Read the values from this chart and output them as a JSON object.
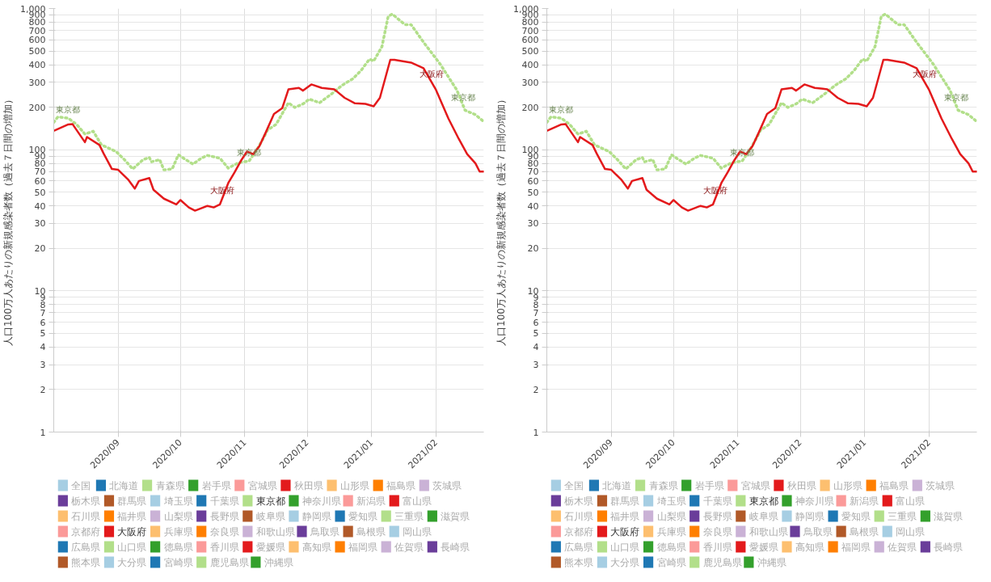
{
  "chart_data": [
    {
      "type": "line",
      "ylabel": "人口100万人あたりの新規感染者数（過去７日間の増加）",
      "log": true,
      "grid": true,
      "legend": "bottom",
      "xlim": [
        "2020-08-01",
        "2021-02-24"
      ],
      "xticks": [
        {
          "value": "2020-09-01",
          "label": "2020/09"
        },
        {
          "value": "2020-10-01",
          "label": "2020/10"
        },
        {
          "value": "2020-11-01",
          "label": "2020/11"
        },
        {
          "value": "2020-12-01",
          "label": "2020/12"
        },
        {
          "value": "2021-01-01",
          "label": "2021/01"
        },
        {
          "value": "2021-02-01",
          "label": "2021/02"
        }
      ],
      "ylim": [
        1,
        1000
      ],
      "yticks": [
        1,
        2,
        3,
        4,
        5,
        6,
        7,
        8,
        9,
        10,
        20,
        30,
        40,
        50,
        60,
        70,
        80,
        90,
        100,
        200,
        300,
        400,
        500,
        600,
        700,
        800,
        900,
        {
          "value": 1000,
          "label": "1,000"
        }
      ],
      "annotations": [
        {
          "text": "東京都",
          "x": "2020-08-08",
          "y": 167
        },
        {
          "text": "東京都",
          "x": "2020-11-03",
          "y": 83
        },
        {
          "text": "大阪府",
          "x": "2020-10-21",
          "y": 45
        },
        {
          "text": "大阪府",
          "x": "2021-01-30",
          "y": 300
        },
        {
          "text": "東京都",
          "x": "2021-02-14",
          "y": 205
        }
      ],
      "series": [
        {
          "name": "全国",
          "color": "#a6cee3"
        },
        {
          "name": "北海道",
          "color": "#1f78b4"
        },
        {
          "name": "青森県",
          "color": "#b2df8a"
        },
        {
          "name": "岩手県",
          "color": "#33a02c"
        },
        {
          "name": "宮城県",
          "color": "#fb9a99"
        },
        {
          "name": "秋田県",
          "color": "#e31a1c"
        },
        {
          "name": "山形県",
          "color": "#fdbf6f"
        },
        {
          "name": "福島県",
          "color": "#ff7f00"
        },
        {
          "name": "茨城県",
          "color": "#cab2d6"
        },
        {
          "name": "栃木県",
          "color": "#6a3d9a"
        },
        {
          "name": "群馬県",
          "color": "#b15928"
        },
        {
          "name": "埼玉県",
          "color": "#a6cee3"
        },
        {
          "name": "千葉県",
          "color": "#1f78b4"
        },
        {
          "name": "東京都",
          "color": "#b2df8a",
          "line_style": "dotted",
          "x": [
            "2020-08-01",
            "2020-08-03",
            "2020-08-08",
            "2020-08-12",
            "2020-08-16",
            "2020-08-20",
            "2020-08-24",
            "2020-08-31",
            "2020-09-04",
            "2020-09-08",
            "2020-09-13",
            "2020-09-16",
            "2020-09-17",
            "2020-09-21",
            "2020-09-23",
            "2020-09-27",
            "2020-09-30",
            "2020-10-03",
            "2020-10-07",
            "2020-10-11",
            "2020-10-14",
            "2020-10-20",
            "2020-10-24",
            "2020-10-29",
            "2020-11-03",
            "2020-11-07",
            "2020-11-12",
            "2020-11-16",
            "2020-11-22",
            "2020-11-25",
            "2020-11-29",
            "2020-12-02",
            "2020-12-07",
            "2020-12-13",
            "2020-12-18",
            "2020-12-23",
            "2020-12-27",
            "2020-12-31",
            "2021-01-02",
            "2021-01-06",
            "2021-01-09",
            "2021-01-11",
            "2021-01-17",
            "2021-01-20",
            "2021-01-26",
            "2021-02-03",
            "2021-02-11",
            "2021-02-15",
            "2021-02-20",
            "2021-02-24"
          ],
          "values": [
            156,
            171,
            167,
            151,
            129,
            135,
            108,
            97,
            85,
            73,
            85,
            88,
            82,
            85,
            72,
            73,
            92,
            86,
            79,
            87,
            91,
            87,
            74,
            81,
            83,
            101,
            138,
            151,
            215,
            199,
            211,
            228,
            215,
            250,
            287,
            318,
            365,
            438,
            424,
            538,
            881,
            912,
            769,
            769,
            577,
            404,
            265,
            190,
            177,
            158
          ]
        },
        {
          "name": "神奈川県",
          "color": "#33a02c"
        },
        {
          "name": "新潟県",
          "color": "#fb9a99"
        },
        {
          "name": "富山県",
          "color": "#e31a1c"
        },
        {
          "name": "石川県",
          "color": "#fdbf6f"
        },
        {
          "name": "福井県",
          "color": "#ff7f00"
        },
        {
          "name": "山梨県",
          "color": "#cab2d6"
        },
        {
          "name": "長野県",
          "color": "#6a3d9a"
        },
        {
          "name": "岐阜県",
          "color": "#b15928"
        },
        {
          "name": "静岡県",
          "color": "#a6cee3"
        },
        {
          "name": "愛知県",
          "color": "#1f78b4"
        },
        {
          "name": "三重県",
          "color": "#b2df8a"
        },
        {
          "name": "滋賀県",
          "color": "#33a02c"
        },
        {
          "name": "京都府",
          "color": "#fb9a99"
        },
        {
          "name": "大阪府",
          "color": "#e31a1c",
          "line_style": "solid",
          "x": [
            "2020-08-01",
            "2020-08-08",
            "2020-08-10",
            "2020-08-16",
            "2020-08-17",
            "2020-08-23",
            "2020-08-25",
            "2020-08-29",
            "2020-09-01",
            "2020-09-06",
            "2020-09-09",
            "2020-09-11",
            "2020-09-16",
            "2020-09-18",
            "2020-09-23",
            "2020-09-29",
            "2020-10-01",
            "2020-10-05",
            "2020-10-08",
            "2020-10-14",
            "2020-10-17",
            "2020-10-20",
            "2020-10-24",
            "2020-10-27",
            "2020-10-30",
            "2020-11-02",
            "2020-11-05",
            "2020-11-08",
            "2020-11-11",
            "2020-11-15",
            "2020-11-19",
            "2020-11-22",
            "2020-11-27",
            "2020-11-29",
            "2020-12-03",
            "2020-12-08",
            "2020-12-14",
            "2020-12-19",
            "2020-12-24",
            "2020-12-29",
            "2021-01-02",
            "2021-01-05",
            "2021-01-10",
            "2021-01-12",
            "2021-01-20",
            "2021-01-26",
            "2021-02-01",
            "2021-02-07",
            "2021-02-12",
            "2021-02-16",
            "2021-02-20",
            "2021-02-22",
            "2021-02-24"
          ],
          "values": [
            136,
            151,
            152,
            113,
            123,
            108,
            94,
            73,
            72,
            61,
            53,
            60,
            63,
            52,
            45,
            41,
            44,
            39,
            37,
            40,
            39,
            41,
            58,
            69,
            83,
            97,
            93,
            106,
            132,
            179,
            197,
            268,
            274,
            262,
            290,
            274,
            268,
            233,
            213,
            211,
            203,
            233,
            433,
            433,
            414,
            378,
            265,
            166,
            119,
            93,
            80,
            70,
            70
          ]
        },
        {
          "name": "兵庫県",
          "color": "#fdbf6f"
        },
        {
          "name": "奈良県",
          "color": "#ff7f00"
        },
        {
          "name": "和歌山県",
          "color": "#cab2d6"
        },
        {
          "name": "鳥取県",
          "color": "#6a3d9a"
        },
        {
          "name": "島根県",
          "color": "#b15928"
        },
        {
          "name": "岡山県",
          "color": "#a6cee3"
        },
        {
          "name": "広島県",
          "color": "#1f78b4"
        },
        {
          "name": "山口県",
          "color": "#b2df8a"
        },
        {
          "name": "徳島県",
          "color": "#33a02c"
        },
        {
          "name": "香川県",
          "color": "#fb9a99"
        },
        {
          "name": "愛媛県",
          "color": "#e31a1c"
        },
        {
          "name": "高知県",
          "color": "#fdbf6f"
        },
        {
          "name": "福岡県",
          "color": "#ff7f00"
        },
        {
          "name": "佐賀県",
          "color": "#cab2d6"
        },
        {
          "name": "長崎県",
          "color": "#6a3d9a"
        },
        {
          "name": "熊本県",
          "color": "#b15928"
        },
        {
          "name": "大分県",
          "color": "#a6cee3"
        },
        {
          "name": "宮崎県",
          "color": "#1f78b4"
        },
        {
          "name": "鹿児島県",
          "color": "#b2df8a"
        },
        {
          "name": "沖縄県",
          "color": "#33a02c"
        }
      ]
    },
    {
      "type": "line",
      "ylabel": "人口100万人あたりの新規感染者数（過去７日間の増加）",
      "log": true,
      "grid": true,
      "legend": "bottom",
      "xlim": [
        "2020-08-01",
        "2021-02-24"
      ],
      "xticks": [
        {
          "value": "2020-09-01",
          "label": "2020/09"
        },
        {
          "value": "2020-10-01",
          "label": "2020/10"
        },
        {
          "value": "2020-11-01",
          "label": "2020/11"
        },
        {
          "value": "2020-12-01",
          "label": "2020/12"
        },
        {
          "value": "2021-01-01",
          "label": "2021/01"
        },
        {
          "value": "2021-02-01",
          "label": "2021/02"
        }
      ],
      "ylim": [
        1,
        1000
      ],
      "yticks": [
        1,
        2,
        3,
        4,
        5,
        6,
        7,
        8,
        9,
        10,
        20,
        30,
        40,
        50,
        60,
        70,
        80,
        90,
        100,
        200,
        300,
        400,
        500,
        600,
        700,
        800,
        900,
        {
          "value": 1000,
          "label": "1,000"
        }
      ],
      "annotations": [
        {
          "text": "東京都",
          "x": "2020-08-08",
          "y": 167
        },
        {
          "text": "東京都",
          "x": "2020-11-03",
          "y": 83
        },
        {
          "text": "大阪府",
          "x": "2020-10-21",
          "y": 45
        },
        {
          "text": "大阪府",
          "x": "2021-01-30",
          "y": 300
        },
        {
          "text": "東京都",
          "x": "2021-02-14",
          "y": 205
        }
      ],
      "series": [
        {
          "name": "全国",
          "color": "#a6cee3"
        },
        {
          "name": "北海道",
          "color": "#1f78b4"
        },
        {
          "name": "青森県",
          "color": "#b2df8a"
        },
        {
          "name": "岩手県",
          "color": "#33a02c"
        },
        {
          "name": "宮城県",
          "color": "#fb9a99"
        },
        {
          "name": "秋田県",
          "color": "#e31a1c"
        },
        {
          "name": "山形県",
          "color": "#fdbf6f"
        },
        {
          "name": "福島県",
          "color": "#ff7f00"
        },
        {
          "name": "茨城県",
          "color": "#cab2d6"
        },
        {
          "name": "栃木県",
          "color": "#6a3d9a"
        },
        {
          "name": "群馬県",
          "color": "#b15928"
        },
        {
          "name": "埼玉県",
          "color": "#a6cee3"
        },
        {
          "name": "千葉県",
          "color": "#1f78b4"
        },
        {
          "name": "東京都",
          "color": "#b2df8a",
          "line_style": "dotted",
          "x": [
            "2020-08-01",
            "2020-08-03",
            "2020-08-08",
            "2020-08-12",
            "2020-08-16",
            "2020-08-20",
            "2020-08-24",
            "2020-08-31",
            "2020-09-04",
            "2020-09-08",
            "2020-09-13",
            "2020-09-16",
            "2020-09-17",
            "2020-09-21",
            "2020-09-23",
            "2020-09-27",
            "2020-09-30",
            "2020-10-03",
            "2020-10-07",
            "2020-10-11",
            "2020-10-14",
            "2020-10-20",
            "2020-10-24",
            "2020-10-29",
            "2020-11-03",
            "2020-11-07",
            "2020-11-12",
            "2020-11-16",
            "2020-11-22",
            "2020-11-25",
            "2020-11-29",
            "2020-12-02",
            "2020-12-07",
            "2020-12-13",
            "2020-12-18",
            "2020-12-23",
            "2020-12-27",
            "2020-12-31",
            "2021-01-02",
            "2021-01-06",
            "2021-01-09",
            "2021-01-11",
            "2021-01-17",
            "2021-01-20",
            "2021-01-26",
            "2021-02-03",
            "2021-02-11",
            "2021-02-15",
            "2021-02-20",
            "2021-02-24"
          ],
          "values": [
            156,
            171,
            167,
            151,
            129,
            135,
            108,
            97,
            85,
            73,
            85,
            88,
            82,
            85,
            72,
            73,
            92,
            86,
            79,
            87,
            91,
            87,
            74,
            81,
            83,
            101,
            138,
            151,
            215,
            199,
            211,
            228,
            215,
            250,
            287,
            318,
            365,
            438,
            424,
            538,
            881,
            912,
            769,
            769,
            577,
            404,
            265,
            190,
            177,
            158
          ]
        },
        {
          "name": "神奈川県",
          "color": "#33a02c"
        },
        {
          "name": "新潟県",
          "color": "#fb9a99"
        },
        {
          "name": "富山県",
          "color": "#e31a1c"
        },
        {
          "name": "石川県",
          "color": "#fdbf6f"
        },
        {
          "name": "福井県",
          "color": "#ff7f00"
        },
        {
          "name": "山梨県",
          "color": "#cab2d6"
        },
        {
          "name": "長野県",
          "color": "#6a3d9a"
        },
        {
          "name": "岐阜県",
          "color": "#b15928"
        },
        {
          "name": "静岡県",
          "color": "#a6cee3"
        },
        {
          "name": "愛知県",
          "color": "#1f78b4"
        },
        {
          "name": "三重県",
          "color": "#b2df8a"
        },
        {
          "name": "滋賀県",
          "color": "#33a02c"
        },
        {
          "name": "京都府",
          "color": "#fb9a99"
        },
        {
          "name": "大阪府",
          "color": "#e31a1c",
          "line_style": "solid",
          "x": [
            "2020-08-01",
            "2020-08-08",
            "2020-08-10",
            "2020-08-16",
            "2020-08-17",
            "2020-08-23",
            "2020-08-25",
            "2020-08-29",
            "2020-09-01",
            "2020-09-06",
            "2020-09-09",
            "2020-09-11",
            "2020-09-16",
            "2020-09-18",
            "2020-09-23",
            "2020-09-29",
            "2020-10-01",
            "2020-10-05",
            "2020-10-08",
            "2020-10-14",
            "2020-10-17",
            "2020-10-20",
            "2020-10-24",
            "2020-10-27",
            "2020-10-30",
            "2020-11-02",
            "2020-11-05",
            "2020-11-08",
            "2020-11-11",
            "2020-11-15",
            "2020-11-19",
            "2020-11-22",
            "2020-11-27",
            "2020-11-29",
            "2020-12-03",
            "2020-12-08",
            "2020-12-14",
            "2020-12-19",
            "2020-12-24",
            "2020-12-29",
            "2021-01-02",
            "2021-01-05",
            "2021-01-10",
            "2021-01-12",
            "2021-01-20",
            "2021-01-26",
            "2021-02-01",
            "2021-02-07",
            "2021-02-12",
            "2021-02-16",
            "2021-02-20",
            "2021-02-22",
            "2021-02-24"
          ],
          "values": [
            136,
            151,
            152,
            113,
            123,
            108,
            94,
            73,
            72,
            61,
            53,
            60,
            63,
            52,
            45,
            41,
            44,
            39,
            37,
            40,
            39,
            41,
            58,
            69,
            83,
            97,
            93,
            106,
            132,
            179,
            197,
            268,
            274,
            262,
            290,
            274,
            268,
            233,
            213,
            211,
            203,
            233,
            433,
            433,
            414,
            378,
            265,
            166,
            119,
            93,
            80,
            70,
            70
          ]
        },
        {
          "name": "兵庫県",
          "color": "#fdbf6f"
        },
        {
          "name": "奈良県",
          "color": "#ff7f00"
        },
        {
          "name": "和歌山県",
          "color": "#cab2d6"
        },
        {
          "name": "鳥取県",
          "color": "#6a3d9a"
        },
        {
          "name": "島根県",
          "color": "#b15928"
        },
        {
          "name": "岡山県",
          "color": "#a6cee3"
        },
        {
          "name": "広島県",
          "color": "#1f78b4"
        },
        {
          "name": "山口県",
          "color": "#b2df8a"
        },
        {
          "name": "徳島県",
          "color": "#33a02c"
        },
        {
          "name": "香川県",
          "color": "#fb9a99"
        },
        {
          "name": "愛媛県",
          "color": "#e31a1c"
        },
        {
          "name": "高知県",
          "color": "#fdbf6f"
        },
        {
          "name": "福岡県",
          "color": "#ff7f00"
        },
        {
          "name": "佐賀県",
          "color": "#cab2d6"
        },
        {
          "name": "長崎県",
          "color": "#6a3d9a"
        },
        {
          "name": "熊本県",
          "color": "#b15928"
        },
        {
          "name": "大分県",
          "color": "#a6cee3"
        },
        {
          "name": "宮崎県",
          "color": "#1f78b4"
        },
        {
          "name": "鹿児島県",
          "color": "#b2df8a"
        },
        {
          "name": "沖縄県",
          "color": "#33a02c"
        }
      ]
    }
  ]
}
